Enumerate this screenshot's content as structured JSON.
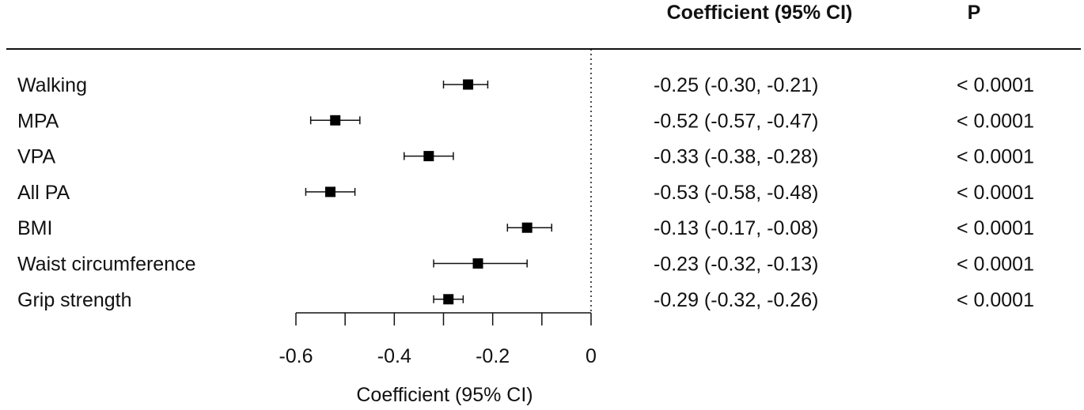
{
  "chart_data": {
    "type": "forest",
    "column_headers": {
      "estimate": "Coefficient (95% CI)",
      "p": "P"
    },
    "xlabel": "Coefficient (95% CI)",
    "xlim": [
      -0.6,
      0
    ],
    "xticks": [
      -0.6,
      -0.4,
      -0.2,
      0
    ],
    "xtick_labels": [
      "-0.6",
      "-0.4",
      "-0.2",
      "0"
    ],
    "reference_line": 0,
    "rows": [
      {
        "label": "Walking",
        "estimate": -0.25,
        "lower": -0.3,
        "upper": -0.21,
        "ci_text": "-0.25 (-0.30, -0.21)",
        "p_text": "< 0.0001"
      },
      {
        "label": "MPA",
        "estimate": -0.52,
        "lower": -0.57,
        "upper": -0.47,
        "ci_text": "-0.52 (-0.57, -0.47)",
        "p_text": "< 0.0001"
      },
      {
        "label": "VPA",
        "estimate": -0.33,
        "lower": -0.38,
        "upper": -0.28,
        "ci_text": "-0.33 (-0.38, -0.28)",
        "p_text": "< 0.0001"
      },
      {
        "label": "All PA",
        "estimate": -0.53,
        "lower": -0.58,
        "upper": -0.48,
        "ci_text": "-0.53 (-0.58, -0.48)",
        "p_text": "< 0.0001"
      },
      {
        "label": "BMI",
        "estimate": -0.13,
        "lower": -0.17,
        "upper": -0.08,
        "ci_text": "-0.13 (-0.17, -0.08)",
        "p_text": "< 0.0001"
      },
      {
        "label": "Waist circumference",
        "estimate": -0.23,
        "lower": -0.32,
        "upper": -0.13,
        "ci_text": "-0.23 (-0.32, -0.13)",
        "p_text": "< 0.0001"
      },
      {
        "label": "Grip strength",
        "estimate": -0.29,
        "lower": -0.32,
        "upper": -0.26,
        "ci_text": "-0.29 (-0.32, -0.26)",
        "p_text": "< 0.0001"
      }
    ]
  }
}
